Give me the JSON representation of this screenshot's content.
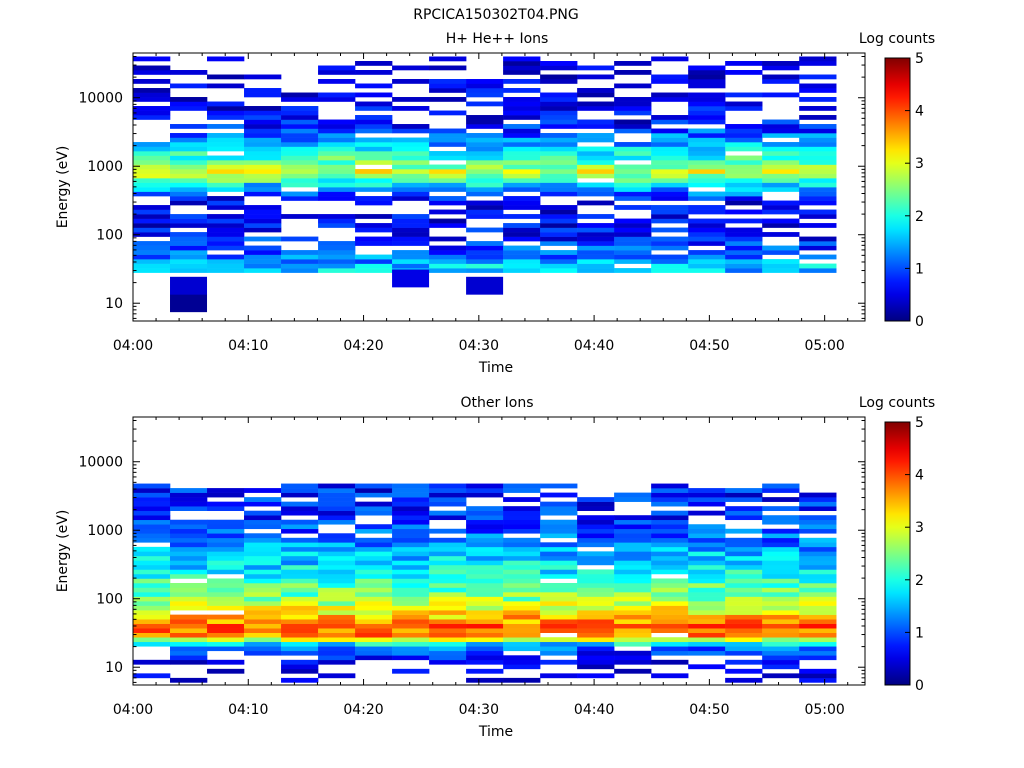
{
  "figure_title": "RPCICA150302T04.PNG",
  "chart_data": [
    {
      "type": "heatmap",
      "title": "H+ He++ Ions",
      "xlabel": "Time",
      "ylabel": "Energy (eV)",
      "x_ticks": [
        "04:00",
        "04:10",
        "04:20",
        "04:30",
        "04:40",
        "04:50",
        "05:00"
      ],
      "y_ticks": [
        "10",
        "100",
        "1000",
        "10000"
      ],
      "y_scale": "log",
      "ylim": [
        5.5,
        45000
      ],
      "colorbar": {
        "label": "Log counts",
        "ticks": [
          "0",
          "1",
          "2",
          "3",
          "4",
          "5"
        ],
        "range": [
          0,
          5
        ]
      },
      "colormap": "jet",
      "time_bins": 19,
      "energy_bins": 48,
      "energy_range_eV": [
        28,
        40000
      ],
      "profile": [
        {
          "energy_eV": 35,
          "log_counts": 1.6
        },
        {
          "energy_eV": 50,
          "log_counts": 1.1
        },
        {
          "energy_eV": 80,
          "log_counts": 0.8
        },
        {
          "energy_eV": 150,
          "log_counts": 0.5
        },
        {
          "energy_eV": 300,
          "log_counts": 0.5
        },
        {
          "energy_eV": 500,
          "log_counts": 1.5
        },
        {
          "energy_eV": 800,
          "log_counts": 3.0
        },
        {
          "energy_eV": 1200,
          "log_counts": 2.3
        },
        {
          "energy_eV": 2000,
          "log_counts": 1.5
        },
        {
          "energy_eV": 5000,
          "log_counts": 0.5
        },
        {
          "energy_eV": 40000,
          "log_counts": 0.3
        }
      ],
      "extra_cells": [
        {
          "time_bin": 1,
          "energy_eV": 10,
          "log_counts": 0.1
        },
        {
          "time_bin": 1,
          "energy_eV": 18,
          "log_counts": 0.4
        },
        {
          "time_bin": 9,
          "energy_eV": 18,
          "log_counts": 0.4
        },
        {
          "time_bin": 7,
          "energy_eV": 23,
          "log_counts": 0.5
        }
      ]
    },
    {
      "type": "heatmap",
      "title": "Other Ions",
      "xlabel": "Time",
      "ylabel": "Energy (eV)",
      "x_ticks": [
        "04:00",
        "04:10",
        "04:20",
        "04:30",
        "04:40",
        "04:50",
        "05:00"
      ],
      "y_ticks": [
        "10",
        "100",
        "1000",
        "10000"
      ],
      "y_scale": "log",
      "ylim": [
        5.5,
        45000
      ],
      "colorbar": {
        "label": "Log counts",
        "ticks": [
          "0",
          "1",
          "2",
          "3",
          "4",
          "5"
        ],
        "range": [
          0,
          5
        ]
      },
      "colormap": "jet",
      "time_bins": 19,
      "energy_bins": 44,
      "energy_range_eV": [
        6,
        4800
      ],
      "profile": [
        {
          "energy_eV": 6,
          "log_counts": 0.2
        },
        {
          "energy_eV": 12,
          "log_counts": 0.4
        },
        {
          "energy_eV": 20,
          "log_counts": 1.2
        },
        {
          "energy_eV": 30,
          "log_counts": 3.8
        },
        {
          "energy_eV": 40,
          "log_counts": 3.9
        },
        {
          "energy_eV": 60,
          "log_counts": 3.3
        },
        {
          "energy_eV": 100,
          "log_counts": 2.6
        },
        {
          "energy_eV": 200,
          "log_counts": 2.0
        },
        {
          "energy_eV": 400,
          "log_counts": 1.6
        },
        {
          "energy_eV": 800,
          "log_counts": 1.1
        },
        {
          "energy_eV": 1500,
          "log_counts": 0.8
        },
        {
          "energy_eV": 4800,
          "log_counts": 0.7
        }
      ]
    }
  ]
}
